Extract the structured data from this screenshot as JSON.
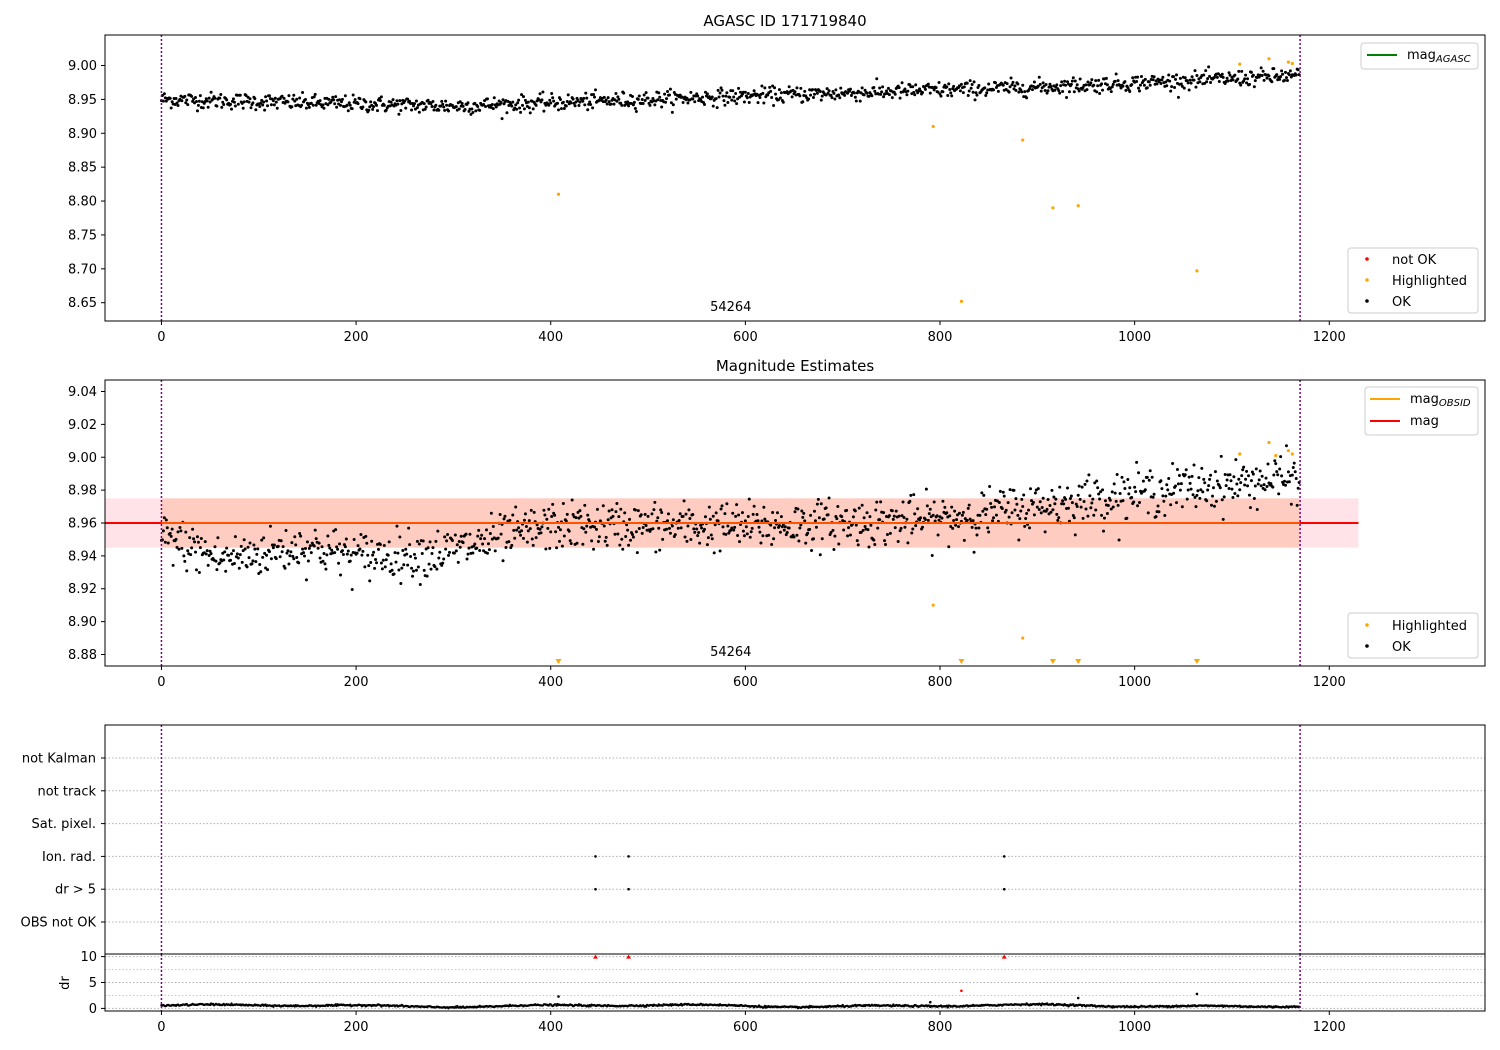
{
  "figure": {
    "colors": {
      "ok": "#000000",
      "highlighted": "#ffa500",
      "not_ok": "#ff0000",
      "mag_agasc": "#008000",
      "mag_line": "#ff0000",
      "mag_obsid": "#ffa500",
      "boundary": "#800080",
      "band_outer": "#ffc0cb",
      "band_inner": "#ffa07a"
    }
  },
  "chart_data": [
    {
      "id": "agasc",
      "type": "scatter",
      "title": "AGASC ID 171719840",
      "xlim": [
        -58,
        1360
      ],
      "ylim": [
        8.623,
        9.045
      ],
      "x_ticks": [
        0,
        200,
        400,
        600,
        800,
        1000,
        1200
      ],
      "x_tick_labels": [
        "0",
        "200",
        "400",
        "600",
        "800",
        "1000",
        "1200"
      ],
      "y_ticks": [
        8.65,
        8.7,
        8.75,
        8.8,
        8.85,
        8.9,
        8.95,
        9.0
      ],
      "y_tick_labels": [
        "8.65",
        "8.70",
        "8.75",
        "8.80",
        "8.85",
        "8.90",
        "8.95",
        "9.00"
      ],
      "obsid_label": {
        "text": "54264",
        "x": 585
      },
      "obsid_boundaries": [
        0,
        1170
      ],
      "trend": {
        "name": "mag_AGASC",
        "points": [
          [
            0,
            8.95
          ],
          [
            300,
            8.94
          ],
          [
            600,
            8.955
          ],
          [
            900,
            8.968
          ],
          [
            1170,
            8.985
          ]
        ],
        "noise": 0.008,
        "n": 1170
      },
      "highlighted": [
        [
          408,
          8.81
        ],
        [
          793,
          8.91
        ],
        [
          822,
          8.652
        ],
        [
          885,
          8.89
        ],
        [
          916,
          8.79
        ],
        [
          942,
          8.793
        ],
        [
          1064,
          8.697
        ],
        [
          1108,
          9.002
        ],
        [
          1138,
          9.01
        ],
        [
          1158,
          9.005
        ],
        [
          1162,
          9.003
        ]
      ],
      "legend_top": [
        {
          "label_main": "mag",
          "label_sub": "AGASC",
          "kind": "line",
          "color": "#008000"
        }
      ],
      "legend_bottom": [
        {
          "label": "not OK",
          "kind": "marker",
          "color": "#ff0000"
        },
        {
          "label": "Highlighted",
          "kind": "marker",
          "color": "#ffa500"
        },
        {
          "label": "OK",
          "kind": "marker",
          "color": "#000000"
        }
      ]
    },
    {
      "id": "estimates",
      "type": "scatter",
      "title": "Magnitude Estimates",
      "xlim": [
        -58,
        1360
      ],
      "ylim": [
        8.873,
        9.047
      ],
      "x_ticks": [
        0,
        200,
        400,
        600,
        800,
        1000,
        1200
      ],
      "x_tick_labels": [
        "0",
        "200",
        "400",
        "600",
        "800",
        "1000",
        "1200"
      ],
      "y_ticks": [
        8.88,
        8.9,
        8.92,
        8.94,
        8.96,
        8.98,
        9.0,
        9.02,
        9.04
      ],
      "y_tick_labels": [
        "8.88",
        "8.90",
        "8.92",
        "8.94",
        "8.96",
        "8.98",
        "9.00",
        "9.02",
        "9.04"
      ],
      "obsid_label": {
        "text": "54264",
        "x": 585
      },
      "obsid_boundaries": [
        0,
        1170
      ],
      "mag_level": 8.96,
      "band_outer": [
        8.945,
        8.975
      ],
      "band_outer_x": [
        -58,
        1230
      ],
      "band_inner": [
        8.945,
        8.975
      ],
      "band_inner_x": [
        0,
        1170
      ],
      "trend": {
        "points": [
          [
            0,
            8.952
          ],
          [
            60,
            8.938
          ],
          [
            150,
            8.946
          ],
          [
            200,
            8.94
          ],
          [
            290,
            8.942
          ],
          [
            400,
            8.958
          ],
          [
            600,
            8.958
          ],
          [
            800,
            8.962
          ],
          [
            900,
            8.97
          ],
          [
            1000,
            8.978
          ],
          [
            1170,
            8.988
          ]
        ],
        "noise": 0.009,
        "n": 1170
      },
      "highlighted": [
        [
          793,
          8.91
        ],
        [
          885,
          8.89
        ],
        [
          1108,
          9.002
        ],
        [
          1138,
          9.009
        ],
        [
          1145,
          9.001
        ],
        [
          1158,
          9.004
        ],
        [
          1162,
          9.002
        ]
      ],
      "highlighted_offscale": [
        408,
        822,
        916,
        942,
        1064
      ],
      "legend_top": [
        {
          "label_main": "mag",
          "label_sub": "OBSID",
          "kind": "line",
          "color": "#ffa500"
        },
        {
          "label_main": "mag",
          "label_sub": "",
          "kind": "line",
          "color": "#ff0000"
        }
      ],
      "legend_bottom": [
        {
          "label": "Highlighted",
          "kind": "marker",
          "color": "#ffa500"
        },
        {
          "label": "OK",
          "kind": "marker",
          "color": "#000000"
        }
      ]
    },
    {
      "id": "flags",
      "type": "scatter",
      "xlim": [
        -58,
        1360
      ],
      "categories": [
        "not Kalman",
        "not track",
        "Sat. pixel.",
        "Ion. rad.",
        "dr > 5",
        "OBS not OK"
      ],
      "points": [
        {
          "category": "Ion. rad.",
          "x": [
            446,
            480,
            866
          ]
        },
        {
          "category": "dr > 5",
          "x": [
            446,
            480,
            866
          ]
        }
      ],
      "obsid_boundaries": [
        0,
        1170
      ]
    },
    {
      "id": "dr",
      "type": "scatter",
      "xlim": [
        -58,
        1360
      ],
      "ylim": [
        -0.5,
        10.5
      ],
      "ylabel": "dr",
      "y_ticks": [
        0,
        5,
        10
      ],
      "y_tick_labels": [
        "0",
        "5",
        "10"
      ],
      "x_ticks": [
        0,
        200,
        400,
        600,
        800,
        1000,
        1200
      ],
      "x_tick_labels": [
        "0",
        "200",
        "400",
        "600",
        "800",
        "1000",
        "1200"
      ],
      "obsid_boundaries": [
        0,
        1170
      ],
      "baseline": {
        "mean": 0.5,
        "amp": 0.3,
        "n": 1170
      },
      "ok_outliers": [
        [
          408,
          2.3
        ],
        [
          790,
          1.2
        ],
        [
          942,
          2.0
        ],
        [
          1064,
          2.8
        ]
      ],
      "not_ok_points": [
        [
          822,
          3.4
        ]
      ],
      "clipped_not_ok": [
        446,
        480,
        866
      ]
    }
  ]
}
